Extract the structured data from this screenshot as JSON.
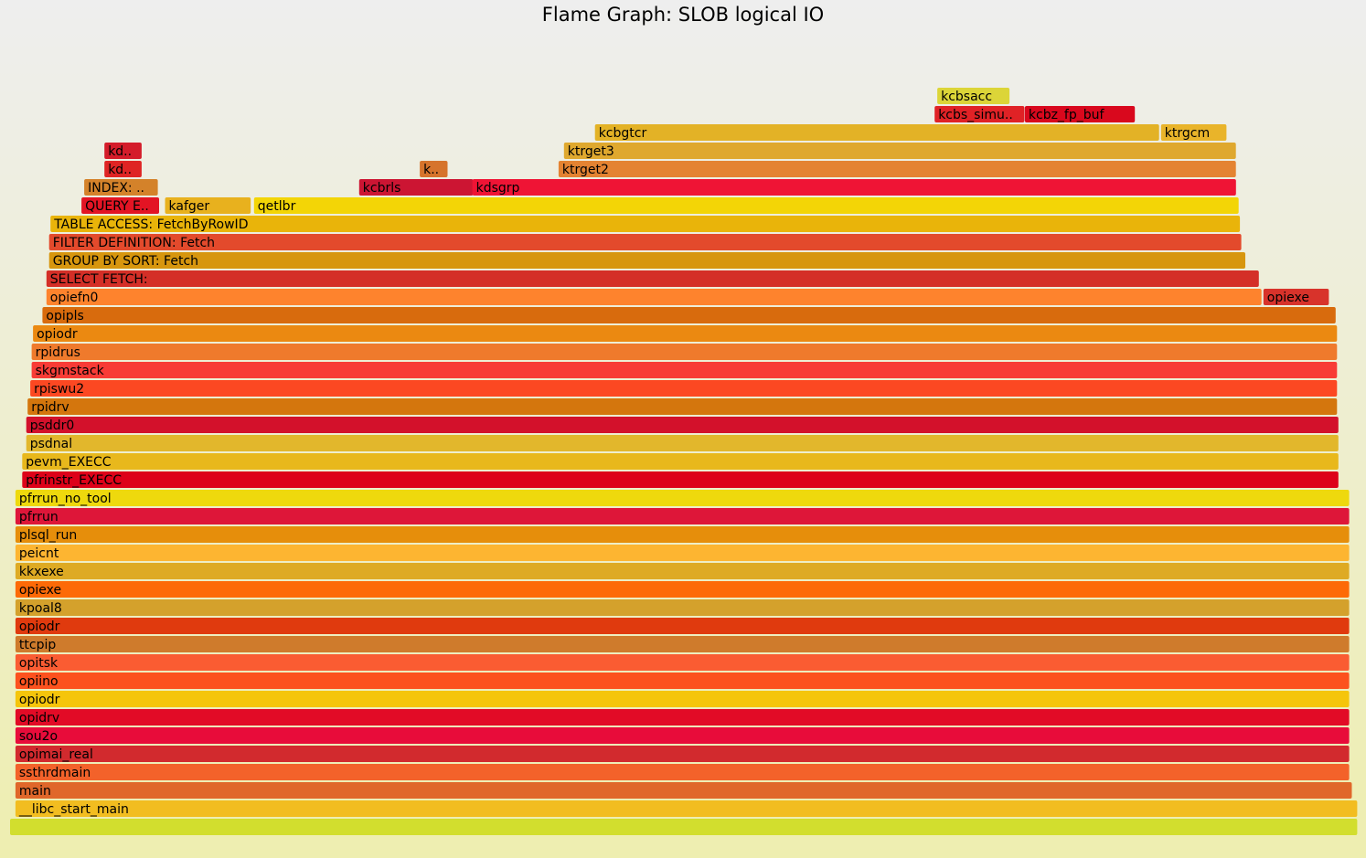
{
  "chart_data": {
    "type": "flame_graph",
    "title": "Flame Graph: SLOB logical IO",
    "x_unit": "percent of total samples (start, width)",
    "root_color": "#d2de2e",
    "frames": [
      {
        "name": "",
        "depth": 0,
        "x": 0.0,
        "w": 100.0,
        "color": "#d2de2e"
      },
      {
        "name": "__libc_start_main",
        "depth": 1,
        "x": 0.4,
        "w": 99.6,
        "color": "#f2bd20"
      },
      {
        "name": "main",
        "depth": 2,
        "x": 0.4,
        "w": 99.2,
        "color": "#e0672a"
      },
      {
        "name": "ssthrdmain",
        "depth": 3,
        "x": 0.4,
        "w": 99.0,
        "color": "#f3622a"
      },
      {
        "name": "opimai_real",
        "depth": 4,
        "x": 0.4,
        "w": 99.0,
        "color": "#d22a2e"
      },
      {
        "name": "sou2o",
        "depth": 5,
        "x": 0.4,
        "w": 99.0,
        "color": "#e80c3a"
      },
      {
        "name": "opidrv",
        "depth": 6,
        "x": 0.4,
        "w": 99.0,
        "color": "#e20b26"
      },
      {
        "name": "opiodr",
        "depth": 7,
        "x": 0.4,
        "w": 99.0,
        "color": "#f5c50b"
      },
      {
        "name": "opiino",
        "depth": 8,
        "x": 0.4,
        "w": 99.0,
        "color": "#fc521e"
      },
      {
        "name": "opitsk",
        "depth": 9,
        "x": 0.4,
        "w": 99.0,
        "color": "#fa5c32"
      },
      {
        "name": "ttcpip",
        "depth": 10,
        "x": 0.4,
        "w": 99.0,
        "color": "#cf7b2c"
      },
      {
        "name": "opiodr",
        "depth": 11,
        "x": 0.4,
        "w": 99.0,
        "color": "#e03a0e"
      },
      {
        "name": "kpoal8",
        "depth": 12,
        "x": 0.4,
        "w": 99.0,
        "color": "#d4a12c"
      },
      {
        "name": "opiexe",
        "depth": 13,
        "x": 0.4,
        "w": 99.0,
        "color": "#fd6a07"
      },
      {
        "name": "kkxexe",
        "depth": 14,
        "x": 0.4,
        "w": 99.0,
        "color": "#deaa24"
      },
      {
        "name": "peicnt",
        "depth": 15,
        "x": 0.4,
        "w": 99.0,
        "color": "#fdb531"
      },
      {
        "name": "plsql_run",
        "depth": 16,
        "x": 0.4,
        "w": 99.0,
        "color": "#e68e0b"
      },
      {
        "name": "pfrrun",
        "depth": 17,
        "x": 0.4,
        "w": 99.0,
        "color": "#de1639"
      },
      {
        "name": "pfrrun_no_tool",
        "depth": 18,
        "x": 0.4,
        "w": 99.0,
        "color": "#eed90d"
      },
      {
        "name": "pfrinstr_EXECC",
        "depth": 19,
        "x": 0.9,
        "w": 97.7,
        "color": "#dd0219"
      },
      {
        "name": "pevm_EXECC",
        "depth": 20,
        "x": 0.9,
        "w": 97.7,
        "color": "#e8b81c"
      },
      {
        "name": "psdnal",
        "depth": 21,
        "x": 1.2,
        "w": 97.4,
        "color": "#e2b72c"
      },
      {
        "name": "psddr0",
        "depth": 22,
        "x": 1.2,
        "w": 97.4,
        "color": "#d3112b"
      },
      {
        "name": "rpidrv",
        "depth": 23,
        "x": 1.3,
        "w": 97.2,
        "color": "#d4760d"
      },
      {
        "name": "rpiswu2",
        "depth": 24,
        "x": 1.5,
        "w": 97.0,
        "color": "#fc4822"
      },
      {
        "name": "skgmstack",
        "depth": 25,
        "x": 1.6,
        "w": 96.9,
        "color": "#f83c36"
      },
      {
        "name": "rpidrus",
        "depth": 26,
        "x": 1.6,
        "w": 96.9,
        "color": "#ef7a2c"
      },
      {
        "name": "opiodr",
        "depth": 27,
        "x": 1.7,
        "w": 96.8,
        "color": "#eb8911"
      },
      {
        "name": "opipls",
        "depth": 28,
        "x": 2.4,
        "w": 96.0,
        "color": "#d86b0d"
      },
      {
        "name": "opiefn0",
        "depth": 29,
        "x": 2.7,
        "w": 90.2,
        "color": "#fe832d"
      },
      {
        "name": "opiexe",
        "depth": 29,
        "x": 93.0,
        "w": 4.9,
        "color": "#d8332b"
      },
      {
        "name": "SELECT FETCH:",
        "depth": 30,
        "x": 2.7,
        "w": 90.0,
        "color": "#d42f27"
      },
      {
        "name": "GROUP BY SORT: Fetch",
        "depth": 31,
        "x": 2.9,
        "w": 88.8,
        "color": "#d7960e"
      },
      {
        "name": "FILTER DEFINITION: Fetch",
        "depth": 32,
        "x": 2.9,
        "w": 88.5,
        "color": "#e34a2c"
      },
      {
        "name": "TABLE ACCESS: FetchByRowID",
        "depth": 33,
        "x": 3.0,
        "w": 88.3,
        "color": "#e9b40a"
      },
      {
        "name": "QUERY E..",
        "depth": 34,
        "x": 5.3,
        "w": 5.8,
        "color": "#e31424"
      },
      {
        "name": "kafger",
        "depth": 34,
        "x": 11.5,
        "w": 6.4,
        "color": "#e8b11e"
      },
      {
        "name": "qetlbr",
        "depth": 34,
        "x": 18.1,
        "w": 73.1,
        "color": "#f3d506"
      },
      {
        "name": "INDEX: ..",
        "depth": 35,
        "x": 5.5,
        "w": 5.5,
        "color": "#d4822a"
      },
      {
        "name": "kcbrls",
        "depth": 35,
        "x": 25.9,
        "w": 8.5,
        "color": "#cc1533"
      },
      {
        "name": "kdsgrp",
        "depth": 35,
        "x": 34.3,
        "w": 56.7,
        "color": "#ef1435"
      },
      {
        "name": "kd..",
        "depth": 36,
        "x": 7.0,
        "w": 2.8,
        "color": "#df2424"
      },
      {
        "name": "k..",
        "depth": 36,
        "x": 30.4,
        "w": 2.1,
        "color": "#d6742c"
      },
      {
        "name": "ktrget2",
        "depth": 36,
        "x": 40.7,
        "w": 50.3,
        "color": "#e48332"
      },
      {
        "name": "kd..",
        "depth": 37,
        "x": 7.0,
        "w": 2.8,
        "color": "#d41c2a"
      },
      {
        "name": "ktrget3",
        "depth": 37,
        "x": 41.1,
        "w": 49.9,
        "color": "#dfa82e"
      },
      {
        "name": "kcbgtcr",
        "depth": 38,
        "x": 43.4,
        "w": 41.9,
        "color": "#e3b226"
      },
      {
        "name": "ktrgcm",
        "depth": 38,
        "x": 85.4,
        "w": 4.9,
        "color": "#e9b42a"
      },
      {
        "name": "kcbs_simu..",
        "depth": 39,
        "x": 68.6,
        "w": 6.7,
        "color": "#e02226"
      },
      {
        "name": "kcbz_fp_buf",
        "depth": 39,
        "x": 75.3,
        "w": 8.2,
        "color": "#d9081d"
      },
      {
        "name": "kcbsacc",
        "depth": 40,
        "x": 68.8,
        "w": 5.4,
        "color": "#dcd538"
      }
    ]
  }
}
